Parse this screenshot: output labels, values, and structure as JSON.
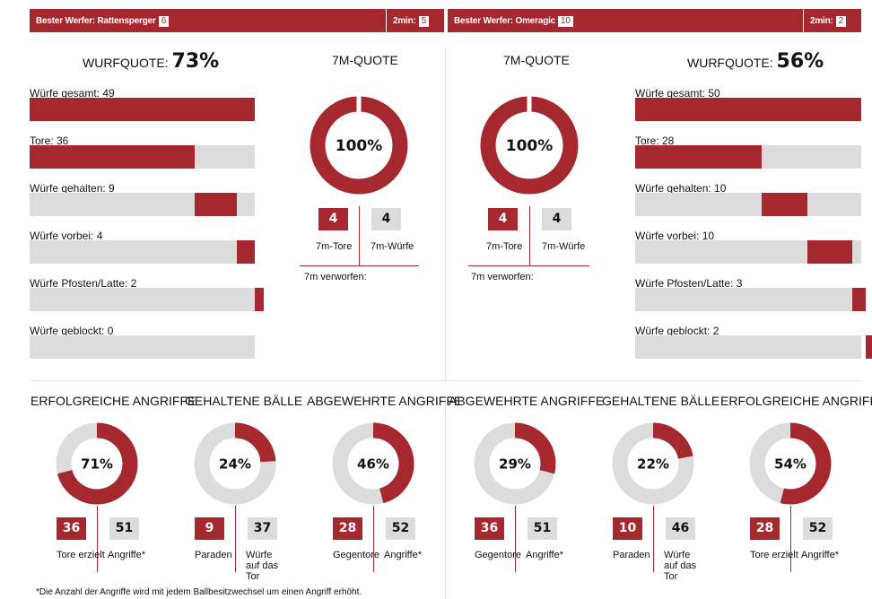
{
  "colors": {
    "accent": "#a5282f",
    "track": "#dcdcdc"
  },
  "left": {
    "best_thrower_label": "Bester Werfer: Rattensperger",
    "best_thrower_goals": "6",
    "two_min_label": "2min:",
    "two_min_value": "5",
    "quote_label": "WURFQUOTE:",
    "quote_value": "73%",
    "bars": [
      {
        "label": "Würfe gesamt: 49",
        "value": 49
      },
      {
        "label": "Tore: 36",
        "value": 36
      },
      {
        "label": "Würfe gehalten: 9",
        "value": 9
      },
      {
        "label": "Würfe vorbei: 4",
        "value": 4
      },
      {
        "label": "Würfe Pfosten/Latte: 2",
        "value": 2
      },
      {
        "label": "Würfe geblockt: 0",
        "value": 0
      }
    ],
    "seven_m": {
      "title": "7M-QUOTE",
      "percent_label": "100%",
      "percent": 100,
      "goals": "4",
      "attempts": "4",
      "goals_label": "7m-Tore",
      "attempts_label": "7m-Würfe",
      "missed_label": "7m verworfen:"
    },
    "stats": [
      {
        "title": "ERFOLGREICHE ANGRIFFE",
        "pct_label": "71%",
        "pct": 71,
        "red": "36",
        "grey": "51",
        "red_label": "Tore erzielt",
        "grey_label": "Angriffe*"
      },
      {
        "title": "GEHALTENE BÄLLE",
        "pct_label": "24%",
        "pct": 24,
        "red": "9",
        "grey": "37",
        "red_label": "Paraden",
        "grey_label": "Würfe auf das Tor"
      },
      {
        "title": "ABGEWEHRTE ANGRIFFE",
        "pct_label": "46%",
        "pct": 46,
        "red": "28",
        "grey": "52",
        "red_label": "Gegentore",
        "grey_label": "Angriffe*"
      }
    ]
  },
  "right": {
    "best_thrower_label": "Bester Werfer: Omeragic",
    "best_thrower_goals": "10",
    "two_min_label": "2min:",
    "two_min_value": "2",
    "quote_label": "WURFQUOTE:",
    "quote_value": "56%",
    "bars": [
      {
        "label": "Würfe gesamt: 50",
        "value": 50
      },
      {
        "label": "Tore: 28",
        "value": 28
      },
      {
        "label": "Würfe gehalten: 10",
        "value": 10
      },
      {
        "label": "Würfe vorbei: 10",
        "value": 10
      },
      {
        "label": "Würfe Pfosten/Latte: 3",
        "value": 3
      },
      {
        "label": "Würfe geblockt: 2",
        "value": 2
      }
    ],
    "seven_m": {
      "title": "7M-QUOTE",
      "percent_label": "100%",
      "percent": 100,
      "goals": "4",
      "attempts": "4",
      "goals_label": "7m-Tore",
      "attempts_label": "7m-Würfe",
      "missed_label": "7m verworfen:"
    },
    "stats": [
      {
        "title": "ABGEWEHRTE ANGRIFFE",
        "pct_label": "29%",
        "pct": 29,
        "red": "36",
        "grey": "51",
        "red_label": "Gegentore",
        "grey_label": "Angriffe*"
      },
      {
        "title": "GEHALTENE BÄLLE",
        "pct_label": "22%",
        "pct": 22,
        "red": "10",
        "grey": "46",
        "red_label": "Paraden",
        "grey_label": "Würfe auf das Tor"
      },
      {
        "title": "ERFOLGREICHE ANGRIFFE",
        "pct_label": "54%",
        "pct": 54,
        "red": "28",
        "grey": "52",
        "red_label": "Tore erzielt",
        "grey_label": "Angriffe*"
      }
    ]
  },
  "footnote": "*Die Anzahl der Angriffe wird mit jedem Ballbesitzwechsel um einen Angriff erhöht."
}
